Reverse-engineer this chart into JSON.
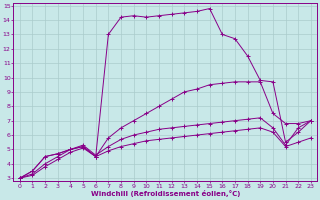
{
  "xlabel": "Windchill (Refroidissement éolien,°C)",
  "bg_color": "#c8e8e8",
  "line_color": "#880088",
  "grid_color": "#aacccc",
  "xlim": [
    -0.5,
    23.5
  ],
  "ylim": [
    2.8,
    15.2
  ],
  "xticks": [
    0,
    1,
    2,
    3,
    4,
    5,
    6,
    7,
    8,
    9,
    10,
    11,
    12,
    13,
    14,
    15,
    16,
    17,
    18,
    19,
    20,
    21,
    22,
    23
  ],
  "yticks": [
    3,
    4,
    5,
    6,
    7,
    8,
    9,
    10,
    11,
    12,
    13,
    14,
    15
  ],
  "series": [
    {
      "x": [
        0,
        1,
        2,
        3,
        4,
        5,
        6,
        7,
        8,
        9,
        10,
        11,
        12,
        13,
        14,
        15,
        16,
        17,
        18,
        19,
        20,
        21,
        22,
        23
      ],
      "y": [
        3,
        3.5,
        4.5,
        4.7,
        5.0,
        5.2,
        4.5,
        13.0,
        14.2,
        14.3,
        14.2,
        14.3,
        14.4,
        14.5,
        14.6,
        14.8,
        13.0,
        12.7,
        11.5,
        9.8,
        9.7,
        5.5,
        6.2,
        7.0
      ]
    },
    {
      "x": [
        0,
        1,
        2,
        3,
        4,
        5,
        6,
        7,
        8,
        9,
        10,
        11,
        12,
        13,
        14,
        15,
        16,
        17,
        18,
        19,
        20,
        21,
        22,
        23
      ],
      "y": [
        3,
        3.5,
        4.5,
        4.7,
        5.0,
        5.2,
        4.5,
        5.8,
        6.5,
        7.0,
        7.5,
        8.0,
        8.5,
        9.0,
        9.2,
        9.5,
        9.6,
        9.7,
        9.7,
        9.7,
        7.5,
        6.8,
        6.8,
        7.0
      ]
    },
    {
      "x": [
        0,
        1,
        2,
        3,
        4,
        5,
        6,
        7,
        8,
        9,
        10,
        11,
        12,
        13,
        14,
        15,
        16,
        17,
        18,
        19,
        20,
        21,
        22,
        23
      ],
      "y": [
        3,
        3.3,
        4.0,
        4.5,
        5.0,
        5.3,
        4.6,
        5.2,
        5.7,
        6.0,
        6.2,
        6.4,
        6.5,
        6.6,
        6.7,
        6.8,
        6.9,
        7.0,
        7.1,
        7.2,
        6.5,
        5.3,
        6.5,
        7.0
      ]
    },
    {
      "x": [
        0,
        1,
        2,
        3,
        4,
        5,
        6,
        7,
        8,
        9,
        10,
        11,
        12,
        13,
        14,
        15,
        16,
        17,
        18,
        19,
        20,
        21,
        22,
        23
      ],
      "y": [
        3,
        3.2,
        3.8,
        4.3,
        4.8,
        5.1,
        4.5,
        4.9,
        5.2,
        5.4,
        5.6,
        5.7,
        5.8,
        5.9,
        6.0,
        6.1,
        6.2,
        6.3,
        6.4,
        6.5,
        6.2,
        5.2,
        5.5,
        5.8
      ]
    }
  ]
}
